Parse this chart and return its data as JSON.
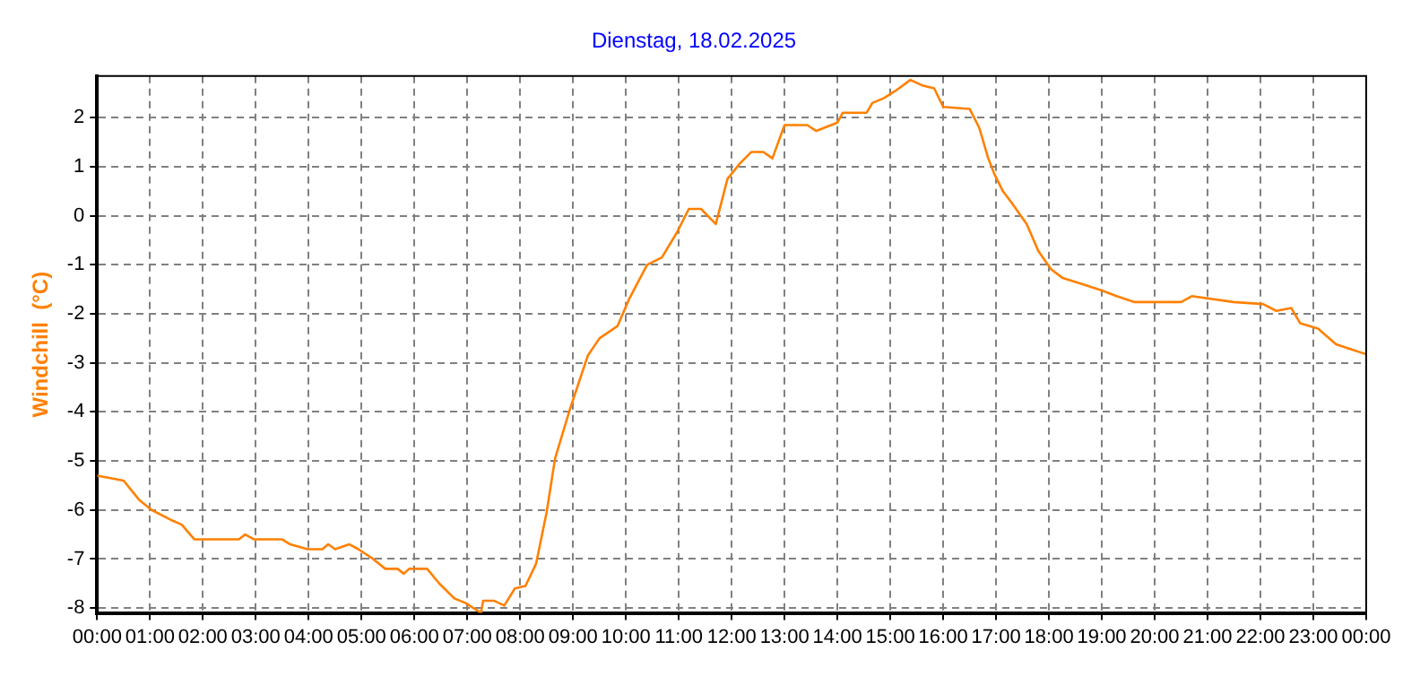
{
  "chart_data": {
    "type": "line",
    "title": "Dienstag, 18.02.2025",
    "ylabel": "Windchill  (°C)",
    "xlim": [
      0,
      24
    ],
    "xticks": [
      {
        "value": 0,
        "label": "00:00"
      },
      {
        "value": 1,
        "label": "01:00"
      },
      {
        "value": 2,
        "label": "02:00"
      },
      {
        "value": 3,
        "label": "03:00"
      },
      {
        "value": 4,
        "label": "04:00"
      },
      {
        "value": 5,
        "label": "05:00"
      },
      {
        "value": 6,
        "label": "06:00"
      },
      {
        "value": 7,
        "label": "07:00"
      },
      {
        "value": 8,
        "label": "08:00"
      },
      {
        "value": 9,
        "label": "09:00"
      },
      {
        "value": 10,
        "label": "10:00"
      },
      {
        "value": 11,
        "label": "11:00"
      },
      {
        "value": 12,
        "label": "12:00"
      },
      {
        "value": 13,
        "label": "13:00"
      },
      {
        "value": 14,
        "label": "14:00"
      },
      {
        "value": 15,
        "label": "15:00"
      },
      {
        "value": 16,
        "label": "16:00"
      },
      {
        "value": 17,
        "label": "17:00"
      },
      {
        "value": 18,
        "label": "18:00"
      },
      {
        "value": 19,
        "label": "19:00"
      },
      {
        "value": 20,
        "label": "20:00"
      },
      {
        "value": 21,
        "label": "21:00"
      },
      {
        "value": 22,
        "label": "22:00"
      },
      {
        "value": 23,
        "label": "23:00"
      },
      {
        "value": 24,
        "label": "00:00"
      }
    ],
    "ylim": [
      -8.1,
      2.85
    ],
    "yticks": [
      -8,
      -7,
      -6,
      -5,
      -4,
      -3,
      -2,
      -1,
      0,
      1,
      2
    ],
    "grid": true,
    "legend": false,
    "marker": "none",
    "line_style": "dashed",
    "x": [
      0,
      0.5,
      0.8,
      1.03,
      1.39,
      1.6,
      1.84,
      2.29,
      2.68,
      2.8,
      2.97,
      3.5,
      3.65,
      3.98,
      4.26,
      4.37,
      4.5,
      4.77,
      4.94,
      5.22,
      5.45,
      5.68,
      5.8,
      5.9,
      6.24,
      6.47,
      6.75,
      6.97,
      7.26,
      7.3,
      7.5,
      7.7,
      7.9,
      8.1,
      8.3,
      8.5,
      8.66,
      8.94,
      9.28,
      9.5,
      9.84,
      10.06,
      10.4,
      10.68,
      10.96,
      11.19,
      11.42,
      11.7,
      11.92,
      12.15,
      12.37,
      12.6,
      12.77,
      13.0,
      13.43,
      13.6,
      14.0,
      14.1,
      14.55,
      14.66,
      14.88,
      15.1,
      15.38,
      15.6,
      15.83,
      16.0,
      16.5,
      16.68,
      16.85,
      16.96,
      17.13,
      17.3,
      17.58,
      17.8,
      18.04,
      18.26,
      18.65,
      18.99,
      19.28,
      19.62,
      20.5,
      20.7,
      21.49,
      22.05,
      22.3,
      22.58,
      22.75,
      23.09,
      23.43,
      23.71,
      23.99
    ],
    "series": [
      {
        "color": "#ff8000",
        "line_style": "solid",
        "values": [
          -5.3,
          -5.4,
          -5.8,
          -6.0,
          -6.2,
          -6.3,
          -6.6,
          -6.6,
          -6.6,
          -6.5,
          -6.6,
          -6.6,
          -6.7,
          -6.8,
          -6.8,
          -6.7,
          -6.8,
          -6.7,
          -6.8,
          -7.0,
          -7.2,
          -7.2,
          -7.3,
          -7.2,
          -7.2,
          -7.5,
          -7.8,
          -7.9,
          -8.1,
          -7.85,
          -7.85,
          -7.95,
          -7.6,
          -7.55,
          -7.1,
          -6.05,
          -4.95,
          -3.95,
          -2.85,
          -2.5,
          -2.25,
          -1.7,
          -1.0,
          -0.85,
          -0.35,
          0.14,
          0.14,
          -0.17,
          0.75,
          1.06,
          1.3,
          1.3,
          1.17,
          1.85,
          1.85,
          1.73,
          1.9,
          2.1,
          2.1,
          2.3,
          2.4,
          2.55,
          2.77,
          2.66,
          2.6,
          2.22,
          2.18,
          1.8,
          1.18,
          0.87,
          0.5,
          0.26,
          -0.17,
          -0.72,
          -1.09,
          -1.27,
          -1.4,
          -1.52,
          -1.64,
          -1.76,
          -1.76,
          -1.64,
          -1.76,
          -1.8,
          -1.94,
          -1.88,
          -2.19,
          -2.3,
          -2.62,
          -2.72,
          -2.82
        ]
      }
    ]
  }
}
